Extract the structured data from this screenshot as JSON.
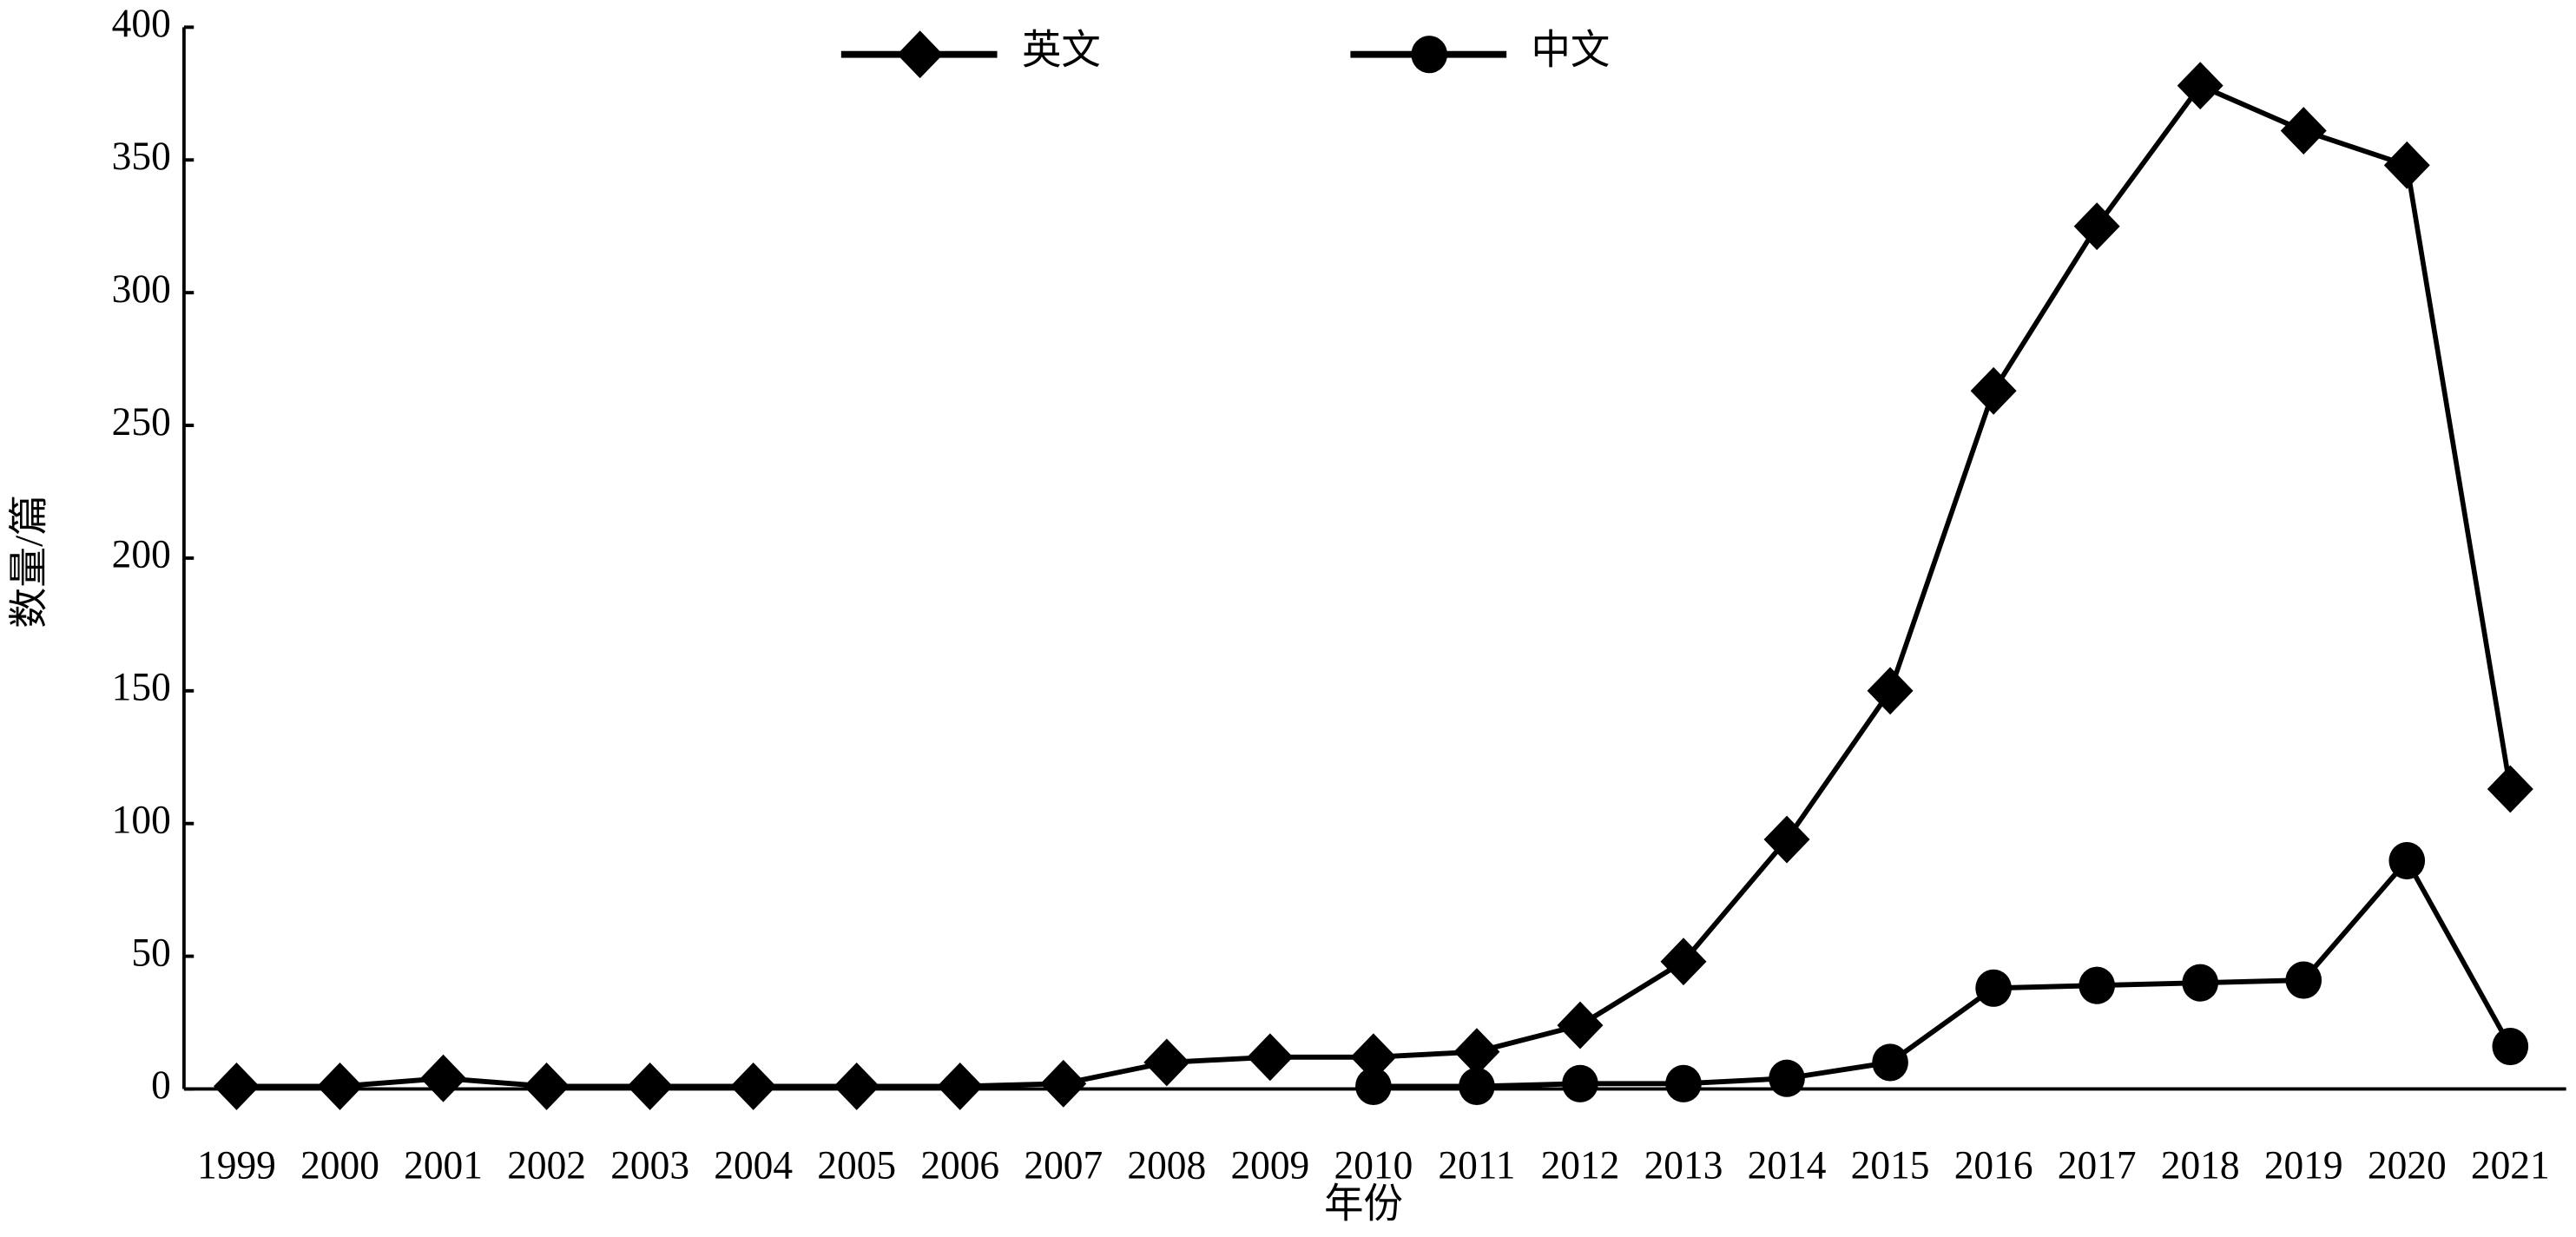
{
  "chart_data": {
    "type": "line",
    "x_label": "年份",
    "y_label": "数量/篇",
    "categories": [
      "1999",
      "2000",
      "2001",
      "2002",
      "2003",
      "2004",
      "2005",
      "2006",
      "2007",
      "2008",
      "2009",
      "2010",
      "2011",
      "2012",
      "2013",
      "2014",
      "2015",
      "2016",
      "2017",
      "2018",
      "2019",
      "2020",
      "2021"
    ],
    "series": [
      {
        "name": "英文",
        "color": "#000000",
        "marker": "diamond",
        "values": [
          1,
          1,
          4,
          1,
          1,
          1,
          1,
          1,
          2,
          10,
          12,
          12,
          14,
          24,
          48,
          94,
          150,
          263,
          325,
          378,
          361,
          348,
          113
        ]
      },
      {
        "name": "中文",
        "color": "#000000",
        "marker": "circle",
        "values": [
          null,
          null,
          null,
          null,
          null,
          null,
          null,
          null,
          null,
          null,
          null,
          1,
          1,
          2,
          2,
          4,
          10,
          38,
          39,
          40,
          41,
          86,
          16
        ]
      }
    ],
    "ylim": [
      0,
      400
    ],
    "yticks": [
      0,
      50,
      100,
      150,
      200,
      250,
      300,
      350,
      400
    ],
    "grid": false,
    "legend": "top"
  }
}
